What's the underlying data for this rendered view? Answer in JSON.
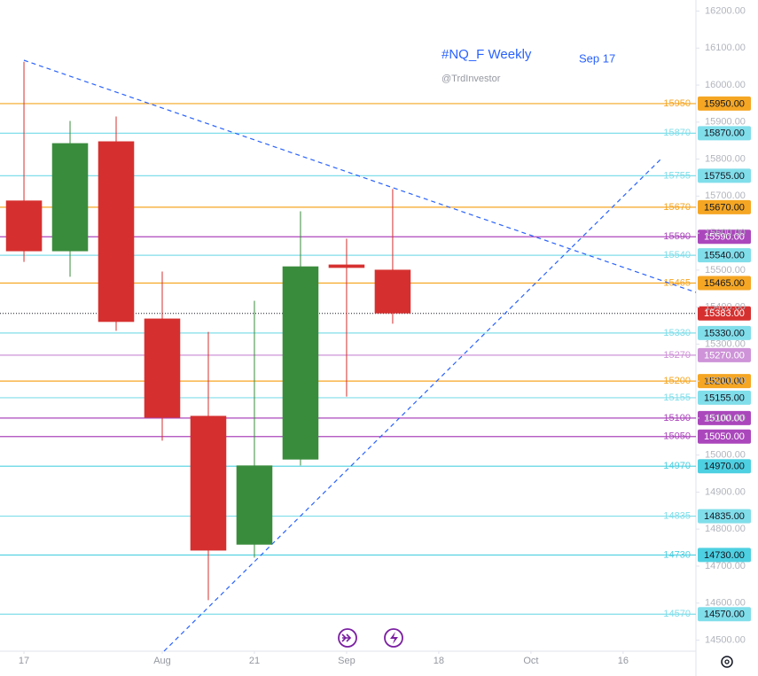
{
  "chart_data": {
    "type": "candlestick",
    "title": "#NQ_F Weekly",
    "subtitle": "@TrdInvestor",
    "annotation": "Sep 17",
    "x": [
      0,
      1,
      2,
      3,
      4,
      5,
      6,
      7,
      8
    ],
    "open": [
      15688,
      15551,
      15848,
      15369,
      15106,
      14758,
      14988,
      15515,
      15501
    ],
    "high": [
      16063,
      15903,
      15915,
      15496,
      15333,
      15417,
      15659,
      15585,
      15719
    ],
    "low": [
      15522,
      15482,
      15336,
      15039,
      14608,
      14723,
      14972,
      15158,
      15355
    ],
    "close": [
      15551,
      15843,
      15360,
      15101,
      14742,
      14972,
      15510,
      15506,
      15383
    ],
    "up_color": "#3a8c3d",
    "down_color": "#d5302f",
    "xlim": [
      -0.52,
      14.58
    ],
    "xticks": [
      {
        "value": 0,
        "label": "17"
      },
      {
        "value": 3,
        "label": "Aug"
      },
      {
        "value": 5,
        "label": "21"
      },
      {
        "value": 7,
        "label": "Sep"
      },
      {
        "value": 9,
        "label": "18"
      },
      {
        "value": 11,
        "label": "Oct"
      },
      {
        "value": 13,
        "label": "16"
      }
    ],
    "ylim": [
      14470,
      16230
    ],
    "yticks": [
      {
        "value": 14500,
        "label": "14500.00"
      },
      {
        "value": 14600,
        "label": "14600.00"
      },
      {
        "value": 14700,
        "label": "14700.00"
      },
      {
        "value": 14800,
        "label": "14800.00"
      },
      {
        "value": 14900,
        "label": "14900.00"
      },
      {
        "value": 15000,
        "label": "15000.00"
      },
      {
        "value": 15100,
        "label": "15100.00"
      },
      {
        "value": 15200,
        "label": "15200.00"
      },
      {
        "value": 15300,
        "label": "15300.00"
      },
      {
        "value": 15400,
        "label": "15400.00"
      },
      {
        "value": 15500,
        "label": "15500.00"
      },
      {
        "value": 15600,
        "label": "15600.00"
      },
      {
        "value": 15700,
        "label": "15700.00"
      },
      {
        "value": 15800,
        "label": "15800.00"
      },
      {
        "value": 15900,
        "label": "15900.00"
      },
      {
        "value": 16000,
        "label": "16000.00"
      },
      {
        "value": 16100,
        "label": "16100.00"
      },
      {
        "value": 16200,
        "label": "16200.00"
      }
    ],
    "levels": [
      {
        "value": 15950,
        "tag": "15950.00",
        "color": "#f5a623"
      },
      {
        "value": 15870,
        "tag": "15870.00",
        "color": "#80deea"
      },
      {
        "value": 15755,
        "tag": "15755.00",
        "color": "#80deea"
      },
      {
        "value": 15670,
        "tag": "15670.00",
        "color": "#f5a623"
      },
      {
        "value": 15590,
        "tag": "15590.00",
        "color": "#ab47bc"
      },
      {
        "value": 15540,
        "tag": "15540.00",
        "color": "#80deea"
      },
      {
        "value": 15465,
        "tag": "15465.00",
        "color": "#f5a623"
      },
      {
        "value": 15330,
        "tag": "15330.00",
        "color": "#80deea"
      },
      {
        "value": 15270,
        "tag": "15270.00",
        "color": "#ce93d8"
      },
      {
        "value": 15200,
        "tag": "15200.00",
        "color": "#f5a623"
      },
      {
        "value": 15155,
        "tag": "15155.00",
        "color": "#80deea"
      },
      {
        "value": 15100,
        "tag": "15100.00",
        "color": "#ab47bc"
      },
      {
        "value": 15050,
        "tag": "15050.00",
        "color": "#ab47bc"
      },
      {
        "value": 14970,
        "tag": "14970.00",
        "color": "#4dd0e1"
      },
      {
        "value": 14835,
        "tag": "14835.00",
        "color": "#80deea"
      },
      {
        "value": 14730,
        "tag": "14730.00",
        "color": "#4dd0e1"
      },
      {
        "value": 14570,
        "tag": "14570.00",
        "color": "#80deea"
      }
    ],
    "last_price": 15383,
    "last_price_label": "15383.00"
  }
}
